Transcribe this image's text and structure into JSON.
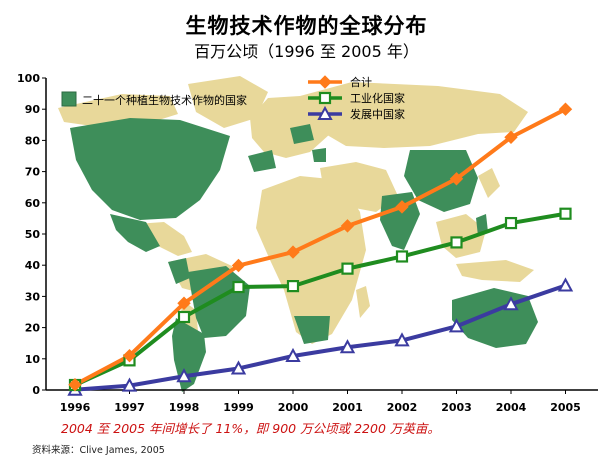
{
  "title": "生物技术作物的全球分布",
  "subtitle": "百万公顷（1996 至 2005 年）",
  "annotation": "2004 至 2005 年间增长了 11%，即 900 万公顷或 2200 万英亩。",
  "source": "资料来源：Clive James, 2005",
  "map_legend_label": "二十一个种植生物技术作物的国家",
  "colors": {
    "biotech_country": "#3e8e5a",
    "other_land": "#e8d89a",
    "total": "#ff7a1a",
    "industrial": "#1f8c1f",
    "developing": "#3b3ba0"
  },
  "chart_data": {
    "type": "line",
    "title": "生物技术作物的全球分布",
    "subtitle": "百万公顷（1996 至 2005 年）",
    "xlabel": "",
    "ylabel": "",
    "categories": [
      "1996",
      "1997",
      "1998",
      "1999",
      "2000",
      "2001",
      "2002",
      "2003",
      "2004",
      "2005"
    ],
    "ylim": [
      0,
      100
    ],
    "yticks": [
      0,
      10,
      20,
      30,
      40,
      50,
      60,
      70,
      80,
      90,
      100
    ],
    "grid": false,
    "legend_position": "top-center",
    "series": [
      {
        "name": "合计",
        "marker": "diamond",
        "color": "#ff7a1a",
        "values": [
          1.7,
          11,
          27.8,
          39.9,
          44.2,
          52.6,
          58.7,
          67.7,
          81,
          90
        ]
      },
      {
        "name": "工业化国家",
        "marker": "square",
        "color": "#1f8c1f",
        "values": [
          1.6,
          9.5,
          23.4,
          33,
          33.3,
          38.9,
          42.8,
          47.3,
          53.5,
          56.5
        ]
      },
      {
        "name": "发展中国家",
        "marker": "triangle",
        "color": "#3b3ba0",
        "values": [
          0.1,
          1.4,
          4.4,
          6.9,
          10.9,
          13.7,
          15.9,
          20.4,
          27.5,
          33.5
        ]
      }
    ]
  }
}
